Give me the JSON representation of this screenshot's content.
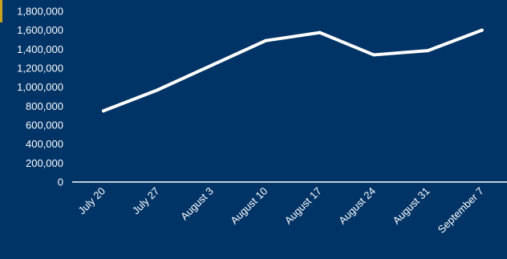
{
  "colors": {
    "background": "#003366",
    "line": "#ffffff",
    "drop_line": "#ffffff",
    "text": "#ffffff",
    "accent": "#c8a21a"
  },
  "chart_data": {
    "type": "line",
    "title": "",
    "xlabel": "",
    "ylabel": "",
    "categories": [
      "July 20",
      "July 27",
      "August 3",
      "August 10",
      "August 17",
      "August 24",
      "August 31",
      "September 7"
    ],
    "series": [
      {
        "values": [
          750000,
          970000,
          1230000,
          1490000,
          1575000,
          1340000,
          1385000,
          1600000
        ]
      }
    ],
    "ylim": [
      0,
      1800000
    ],
    "y_ticks": [
      "0",
      "200,000",
      "400,000",
      "600,000",
      "800,000",
      "1,000,000",
      "1,200,000",
      "1,400,000",
      "1,600,000",
      "1,800,000"
    ],
    "y_tick_values": [
      0,
      200000,
      400000,
      600000,
      800000,
      1000000,
      1200000,
      1400000,
      1600000,
      1800000
    ],
    "grid": false,
    "drop_lines": true,
    "legend": "none"
  }
}
